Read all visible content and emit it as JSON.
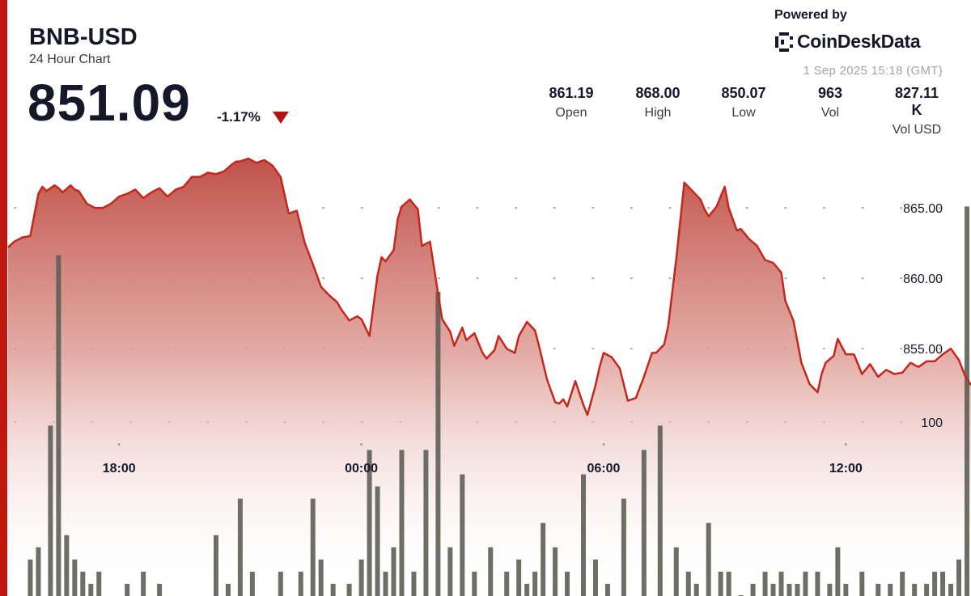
{
  "header": {
    "symbol": "BNB-USD",
    "subtitle": "24 Hour Chart",
    "price": "851.09",
    "change": "-1.17%"
  },
  "branding": {
    "powered_by": "Powered by",
    "brand": "CoinDeskData",
    "timestamp": "1 Sep 2025 15:18 (GMT)"
  },
  "stats": [
    {
      "value": "861.19",
      "label": "Open"
    },
    {
      "value": "868.00",
      "label": "High"
    },
    {
      "value": "850.07",
      "label": "Low"
    },
    {
      "value": "963",
      "label": "Vol"
    },
    {
      "value": "827.11 K",
      "label": "Vol USD"
    }
  ],
  "colors": {
    "accent": "#c0180f",
    "line": "#c4281d",
    "area_top": "#c0524a",
    "volume_bar": "#5d5f54",
    "text": "#16182a"
  },
  "chart_data": {
    "type": "area",
    "x_range_hours": [
      15.25,
      39.1
    ],
    "ylim": [
      850.3,
      870.0
    ],
    "y_ticks": [
      865,
      860,
      855
    ],
    "y_tick_labels": [
      "865.00",
      "860.00",
      "855.00"
    ],
    "volume_tick_value": 100,
    "volume_tick_label": "100",
    "x_ticks": [
      18,
      24,
      30,
      36
    ],
    "x_tick_labels": [
      "18:00",
      "00:00",
      "06:00",
      "12:00"
    ],
    "grid": true,
    "price_series": {
      "hours": [
        15.25,
        15.4,
        15.6,
        15.8,
        15.9,
        16.0,
        16.1,
        16.2,
        16.4,
        16.5,
        16.6,
        16.8,
        16.9,
        17.0,
        17.2,
        17.4,
        17.6,
        17.8,
        18.0,
        18.2,
        18.4,
        18.6,
        18.8,
        19.0,
        19.2,
        19.4,
        19.6,
        19.8,
        20.0,
        20.2,
        20.4,
        20.6,
        20.8,
        20.9,
        21.0,
        21.2,
        21.4,
        21.6,
        21.8,
        22.0,
        22.2,
        22.4,
        22.6,
        22.8,
        23.0,
        23.2,
        23.4,
        23.5,
        23.7,
        23.9,
        24.0,
        24.2,
        24.4,
        24.5,
        24.6,
        24.8,
        24.9,
        25.0,
        25.2,
        25.4,
        25.5,
        25.7,
        25.9,
        26.0,
        26.2,
        26.3,
        26.5,
        26.6,
        26.8,
        27.0,
        27.1,
        27.3,
        27.4,
        27.6,
        27.8,
        27.9,
        28.1,
        28.3,
        28.4,
        28.6,
        28.8,
        28.9,
        29.0,
        29.1,
        29.3,
        29.5,
        29.6,
        29.8,
        29.9,
        30.0,
        30.2,
        30.4,
        30.6,
        30.8,
        31.0,
        31.2,
        31.3,
        31.5,
        31.6,
        31.8,
        32.0,
        32.2,
        32.4,
        32.5,
        32.6,
        32.8,
        32.9,
        33.0,
        33.1,
        33.3,
        33.4,
        33.6,
        33.8,
        34.0,
        34.2,
        34.4,
        34.5,
        34.7,
        34.8,
        34.9,
        35.1,
        35.3,
        35.4,
        35.5,
        35.7,
        35.8,
        36.0,
        36.2,
        36.4,
        36.6,
        36.8,
        37.0,
        37.2,
        37.4,
        37.6,
        37.8,
        38.0,
        38.2,
        38.4,
        38.6,
        38.8,
        38.95,
        39.1
      ],
      "price": [
        862.2,
        862.6,
        862.9,
        863.0,
        864.5,
        866.0,
        866.5,
        866.2,
        866.6,
        866.4,
        866.1,
        866.6,
        866.3,
        866.2,
        865.3,
        865.0,
        865.0,
        865.3,
        865.8,
        866.0,
        866.3,
        865.7,
        866.1,
        866.4,
        865.8,
        866.3,
        866.5,
        867.2,
        867.2,
        867.5,
        867.4,
        867.6,
        868.1,
        868.3,
        868.3,
        868.5,
        868.2,
        868.4,
        868.0,
        867.2,
        864.6,
        864.8,
        862.5,
        861.0,
        859.4,
        858.8,
        858.3,
        857.8,
        857.0,
        857.3,
        857.1,
        855.9,
        860.2,
        861.5,
        861.2,
        862.0,
        864.2,
        865.1,
        865.6,
        864.9,
        862.3,
        862.6,
        858.9,
        857.1,
        856.2,
        855.2,
        856.5,
        855.6,
        856.1,
        854.7,
        854.3,
        854.9,
        855.9,
        855.0,
        854.7,
        855.9,
        856.9,
        856.3,
        855.2,
        852.8,
        851.2,
        851.1,
        851.4,
        850.9,
        852.7,
        851.0,
        850.3,
        852.4,
        853.7,
        854.7,
        854.4,
        853.6,
        851.3,
        851.5,
        853.0,
        854.7,
        854.7,
        855.3,
        856.6,
        861.4,
        866.8,
        866.2,
        865.6,
        864.9,
        864.4,
        865.1,
        865.8,
        866.5,
        865.0,
        863.4,
        863.5,
        862.8,
        862.3,
        861.3,
        861.1,
        860.4,
        858.4,
        857.0,
        855.5,
        854.0,
        852.5,
        851.9,
        853.2,
        854.0,
        854.5,
        855.7,
        854.6,
        854.6,
        853.2,
        853.9,
        853.0,
        853.5,
        853.2,
        853.3,
        854.0,
        853.7,
        854.1,
        854.1,
        854.6,
        855.0,
        854.2,
        853.1,
        852.4,
        853.6,
        853.5,
        853.1,
        852.6,
        852.5,
        853.1,
        851.2,
        851.8
      ]
    },
    "volume_series": {
      "hours": [
        15.8,
        16.0,
        16.3,
        16.5,
        16.7,
        16.9,
        17.1,
        17.3,
        17.5,
        18.2,
        18.6,
        19.0,
        20.4,
        20.7,
        21.0,
        21.3,
        22.0,
        22.5,
        22.8,
        23.0,
        23.3,
        23.7,
        24.0,
        24.2,
        24.4,
        24.6,
        24.8,
        25.0,
        25.3,
        25.6,
        25.9,
        26.2,
        26.5,
        26.8,
        27.2,
        27.6,
        27.9,
        28.1,
        28.3,
        28.5,
        28.8,
        29.1,
        29.5,
        29.8,
        30.1,
        30.5,
        31.0,
        31.4,
        31.8,
        32.1,
        32.3,
        32.6,
        32.9,
        33.1,
        33.4,
        33.7,
        34.0,
        34.2,
        34.4,
        34.6,
        34.8,
        35.0,
        35.3,
        35.6,
        35.8,
        36.0,
        36.4,
        36.8,
        37.1,
        37.4,
        37.7,
        38.0,
        38.2,
        38.4,
        38.6,
        38.8,
        39.0
      ],
      "volume": [
        3,
        4,
        14,
        28,
        5,
        3,
        2,
        1,
        2,
        1,
        2,
        1,
        5,
        1,
        8,
        2,
        2,
        2,
        8,
        3,
        1,
        1,
        3,
        12,
        9,
        2,
        4,
        12,
        2,
        12,
        25,
        4,
        10,
        2,
        4,
        2,
        3,
        1,
        2,
        6,
        4,
        2,
        10,
        3,
        1,
        8,
        12,
        14,
        4,
        2,
        1,
        6,
        2,
        2,
        0,
        1,
        2,
        1,
        2,
        1,
        1,
        2,
        2,
        1,
        4,
        1,
        2,
        1,
        1,
        2,
        1,
        1,
        2,
        2,
        1,
        3,
        32
      ]
    }
  }
}
